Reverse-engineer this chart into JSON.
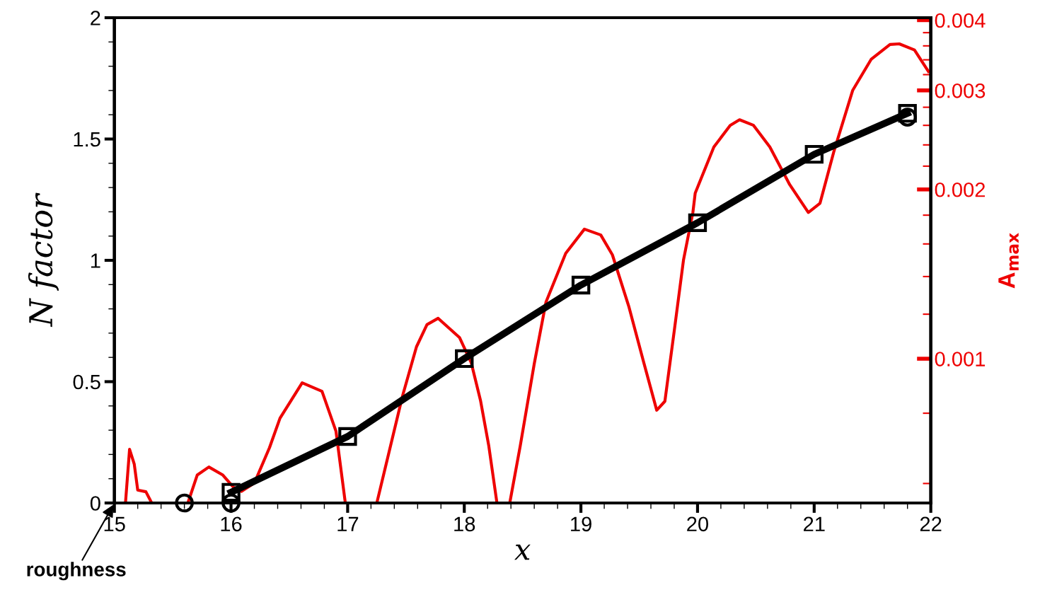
{
  "chart_data": {
    "type": "line",
    "xlabel": "x",
    "ylabel": "N factor",
    "y2label": "A$_{max}$",
    "xlim": [
      15,
      22
    ],
    "xticks": [
      15,
      {
        "value": 15.2,
        "label": null
      },
      {
        "value": 15.4,
        "label": null
      },
      {
        "value": 15.6,
        "label": null
      },
      {
        "value": 15.8,
        "label": null
      },
      16,
      {
        "value": 16.2,
        "label": null
      },
      {
        "value": 16.4,
        "label": null
      },
      {
        "value": 16.6,
        "label": null
      },
      {
        "value": 16.8,
        "label": null
      },
      17,
      {
        "value": 17.2,
        "label": null
      },
      {
        "value": 17.4,
        "label": null
      },
      {
        "value": 17.6,
        "label": null
      },
      {
        "value": 17.8,
        "label": null
      },
      18,
      {
        "value": 18.2,
        "label": null
      },
      {
        "value": 18.4,
        "label": null
      },
      {
        "value": 18.6,
        "label": null
      },
      {
        "value": 18.8,
        "label": null
      },
      19,
      {
        "value": 19.2,
        "label": null
      },
      {
        "value": 19.4,
        "label": null
      },
      {
        "value": 19.6,
        "label": null
      },
      {
        "value": 19.8,
        "label": null
      },
      20,
      {
        "value": 20.2,
        "label": null
      },
      {
        "value": 20.4,
        "label": null
      },
      {
        "value": 20.6,
        "label": null
      },
      {
        "value": 20.8,
        "label": null
      },
      21,
      {
        "value": 21.2,
        "label": null
      },
      {
        "value": 21.4,
        "label": null
      },
      {
        "value": 21.6,
        "label": null
      },
      {
        "value": 21.8,
        "label": null
      },
      22
    ],
    "ylim": [
      0,
      2
    ],
    "yticks": [
      0,
      {
        "value": 0.1,
        "label": null
      },
      {
        "value": 0.2,
        "label": null
      },
      {
        "value": 0.3,
        "label": null
      },
      {
        "value": 0.4,
        "label": null
      },
      0.5,
      {
        "value": 0.6,
        "label": null
      },
      {
        "value": 0.7,
        "label": null
      },
      {
        "value": 0.8,
        "label": null
      },
      {
        "value": 0.9,
        "label": null
      },
      1,
      {
        "value": 1.1,
        "label": null
      },
      {
        "value": 1.2,
        "label": null
      },
      {
        "value": 1.3,
        "label": null
      },
      {
        "value": 1.4,
        "label": null
      },
      1.5,
      {
        "value": 1.6,
        "label": null
      },
      {
        "value": 1.7,
        "label": null
      },
      {
        "value": 1.8,
        "label": null
      },
      {
        "value": 1.9,
        "label": null
      },
      2
    ],
    "log": "y2",
    "y2lim": [
      0.000554,
      0.00404
    ],
    "y2ticks": [
      {
        "value": 0.0006,
        "label": null
      },
      {
        "value": 0.0008,
        "label": null
      },
      0.001,
      {
        "value": 0.0012,
        "label": null
      },
      {
        "value": 0.0014,
        "label": null
      },
      {
        "value": 0.0016,
        "label": null
      },
      {
        "value": 0.0018,
        "label": null
      },
      0.002,
      {
        "value": 0.0022,
        "label": null
      },
      {
        "value": 0.0024,
        "label": null
      },
      {
        "value": 0.0026,
        "label": null
      },
      {
        "value": 0.0028,
        "label": null
      },
      0.003,
      {
        "value": 0.0032,
        "label": null
      },
      {
        "value": 0.0034,
        "label": null
      },
      {
        "value": 0.0036,
        "label": null
      },
      {
        "value": 0.0038,
        "label": null
      },
      0.004
    ],
    "grid": false,
    "legend": false,
    "series": [
      {
        "color": "#000000",
        "marker": "square",
        "x": [
          16,
          17,
          18,
          19,
          20,
          21,
          21.8
        ],
        "values": [
          0.044,
          0.274,
          0.595,
          0.898,
          1.155,
          1.437,
          1.606
        ]
      },
      {
        "type": "scatter",
        "color": "#000000",
        "marker": "circle",
        "x": [
          15.6,
          16,
          21.8
        ],
        "values": [
          0,
          0.0,
          1.59
        ]
      },
      {
        "color": "#ee0000",
        "axis": "y2",
        "marker": "none",
        "x": [
          15.095,
          15.13,
          15.17,
          15.2,
          15.27,
          15.32,
          15.5,
          15.63,
          15.71,
          15.81,
          15.93,
          16.02,
          16.09,
          16.2,
          16.33,
          16.42,
          16.61,
          16.78,
          16.9,
          16.98,
          17.1,
          17.25,
          17.47,
          17.59,
          17.68,
          17.776,
          17.96,
          18.06,
          18.14,
          18.21,
          18.28,
          18.33,
          18.39,
          18.48,
          18.6,
          18.7,
          18.87,
          19.03,
          19.17,
          19.27,
          19.41,
          19.53,
          19.65,
          19.72,
          19.8,
          19.88,
          19.96,
          19.98,
          20.14,
          20.28,
          20.36,
          20.48,
          20.62,
          20.79,
          20.95,
          21.05,
          21.17,
          21.33,
          21.49,
          21.65,
          21.73,
          21.86,
          21.98
        ],
        "values": [
          0.000554,
          0.00069,
          0.00065,
          0.000584,
          0.00058,
          0.000554,
          null,
          0.000554,
          0.000621,
          0.000642,
          0.000621,
          0.000591,
          0.000581,
          0.000601,
          0.000695,
          0.000784,
          0.000906,
          0.000875,
          0.000743,
          0.000554,
          null,
          0.000554,
          0.000858,
          0.00105,
          0.00115,
          0.00118,
          0.00109,
          0.000983,
          0.000841,
          0.0007,
          0.000554,
          null,
          0.000554,
          0.0007,
          0.00098,
          0.00126,
          0.00154,
          0.0017,
          0.00166,
          0.00153,
          0.00124,
          0.001,
          0.00081,
          0.00084,
          0.00112,
          0.0015,
          0.00182,
          0.00197,
          0.00238,
          0.0026,
          0.00266,
          0.0026,
          0.00238,
          0.00204,
          0.00182,
          0.00189,
          0.00234,
          0.003,
          0.00341,
          0.00362,
          0.00363,
          0.00354,
          0.00324
        ]
      }
    ],
    "annotations": [
      "roughness"
    ]
  }
}
